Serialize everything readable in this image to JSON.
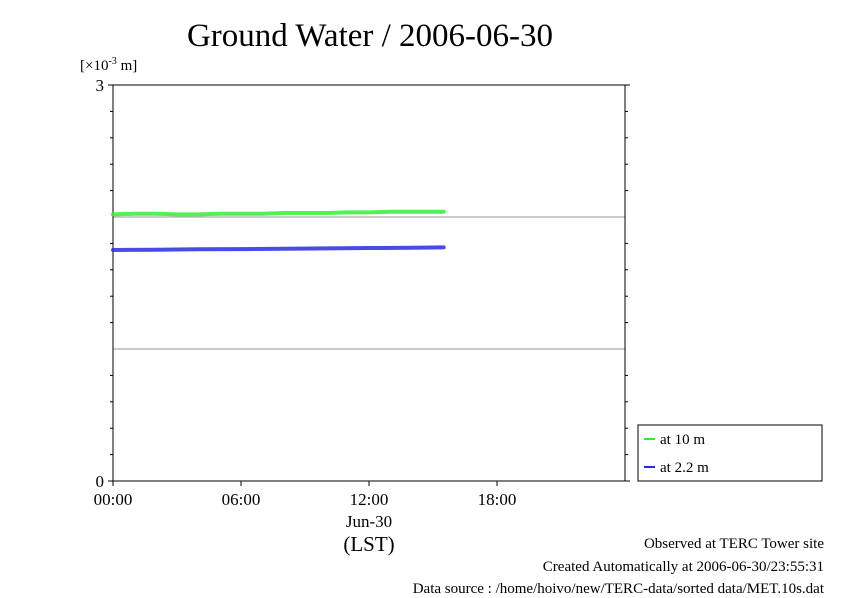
{
  "chart_data": {
    "type": "line",
    "title": "Ground Water / 2006-06-30",
    "y_unit": "[×10",
    "y_unit_exp": "-3",
    "y_unit_tail": " m]",
    "ylim": [
      0,
      3
    ],
    "y_ticks": [
      {
        "value": 0,
        "label": "0"
      },
      {
        "value": 3,
        "label": "3"
      }
    ],
    "y_gridlines": [
      1,
      2
    ],
    "xlim": [
      0,
      24
    ],
    "x_ticks": [
      {
        "value": 0,
        "label": "00:00"
      },
      {
        "value": 6,
        "label": "06:00"
      },
      {
        "value": 12,
        "label": "12:00"
      },
      {
        "value": 18,
        "label": "18:00"
      }
    ],
    "x_date_label": "Jun-30",
    "x_axis_label": "(LST)",
    "legend_position": "bottom-right outside",
    "series": [
      {
        "name": "at 10 m",
        "color": "#33ee33",
        "x": [
          0,
          1,
          2,
          3,
          4,
          5,
          6,
          7,
          8,
          9,
          10,
          11,
          12,
          13,
          14,
          15,
          15.5
        ],
        "y": [
          2.02,
          2.025,
          2.025,
          2.02,
          2.02,
          2.025,
          2.025,
          2.025,
          2.03,
          2.03,
          2.03,
          2.035,
          2.035,
          2.04,
          2.04,
          2.04,
          2.04
        ]
      },
      {
        "name": "at 2.2 m",
        "color": "#2a2ae0",
        "x": [
          0,
          2,
          4,
          6,
          8,
          10,
          12,
          14,
          15.5
        ],
        "y": [
          1.75,
          1.752,
          1.755,
          1.757,
          1.76,
          1.762,
          1.765,
          1.767,
          1.77
        ]
      }
    ]
  },
  "footer": {
    "line1": "Observed at TERC Tower site",
    "line2": "Created Automatically at 2006-06-30/23:55:31",
    "line3": "Data source : /home/hoivo/new/TERC-data/sorted  data/MET.10s.dat"
  }
}
